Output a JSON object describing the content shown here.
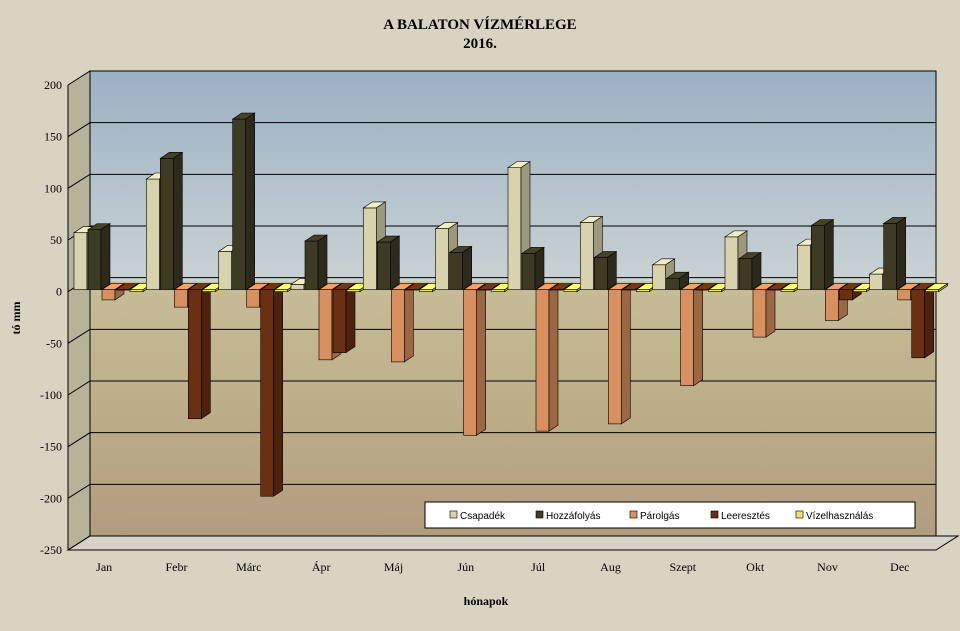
{
  "chart_data": {
    "type": "bar",
    "title": "A BALATON VÍZMÉRLEGE",
    "subtitle": "2016.",
    "xlabel": "hónapok",
    "ylabel": "tó mm",
    "ylim": [
      -250,
      200
    ],
    "yticks": [
      "200",
      "150",
      "100",
      "50",
      "0",
      "-50",
      "-100",
      "-150",
      "-200",
      "-250"
    ],
    "grid": true,
    "legend_position": "bottom-right",
    "categories": [
      "Jan",
      "Febr",
      "Márc",
      "Ápr",
      "Máj",
      "Jún",
      "Júl",
      "Aug",
      "Szept",
      "Okt",
      "Nov",
      "Dec"
    ],
    "series": [
      {
        "name": "Csapadék",
        "color": "#d8d3ad",
        "values": [
          55,
          107,
          37,
          5,
          79,
          59,
          118,
          65,
          24,
          51,
          43,
          15
        ]
      },
      {
        "name": "Hozzáfolyás",
        "color": "#3e3b25",
        "values": [
          58,
          127,
          165,
          47,
          46,
          36,
          35,
          31,
          11,
          30,
          62,
          64
        ]
      },
      {
        "name": "Párolgás",
        "color": "#d8905e",
        "values": [
          -10,
          -17,
          -17,
          -68,
          -70,
          -141,
          -137,
          -130,
          -93,
          -46,
          -30,
          -10
        ]
      },
      {
        "name": "Leeresztés",
        "color": "#6b2f12",
        "values": [
          0,
          -125,
          -200,
          -61,
          0,
          0,
          0,
          0,
          0,
          0,
          -10,
          -66
        ]
      },
      {
        "name": "Vízelhasználás",
        "color": "#eee36a",
        "values": [
          -2,
          -2,
          -2,
          -2,
          -2,
          -2,
          -2,
          -2,
          -2,
          -2,
          -2,
          -2
        ]
      }
    ]
  }
}
